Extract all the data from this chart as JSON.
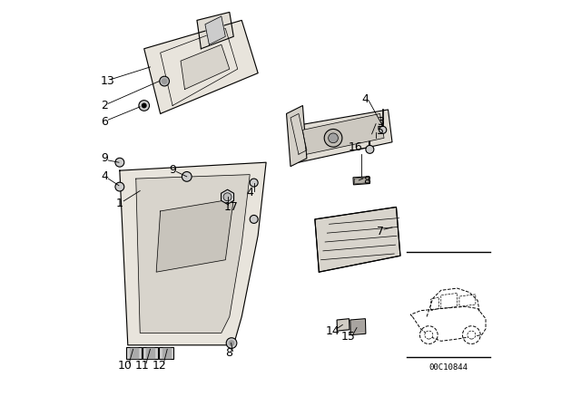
{
  "background_color": "#ffffff",
  "line_color": "#000000",
  "label_fontsize": 9,
  "fill_light": "#e8e4dc",
  "fill_mid": "#d8d4cc",
  "fill_dark": "#c8c4bc",
  "car_code": "00C10844"
}
